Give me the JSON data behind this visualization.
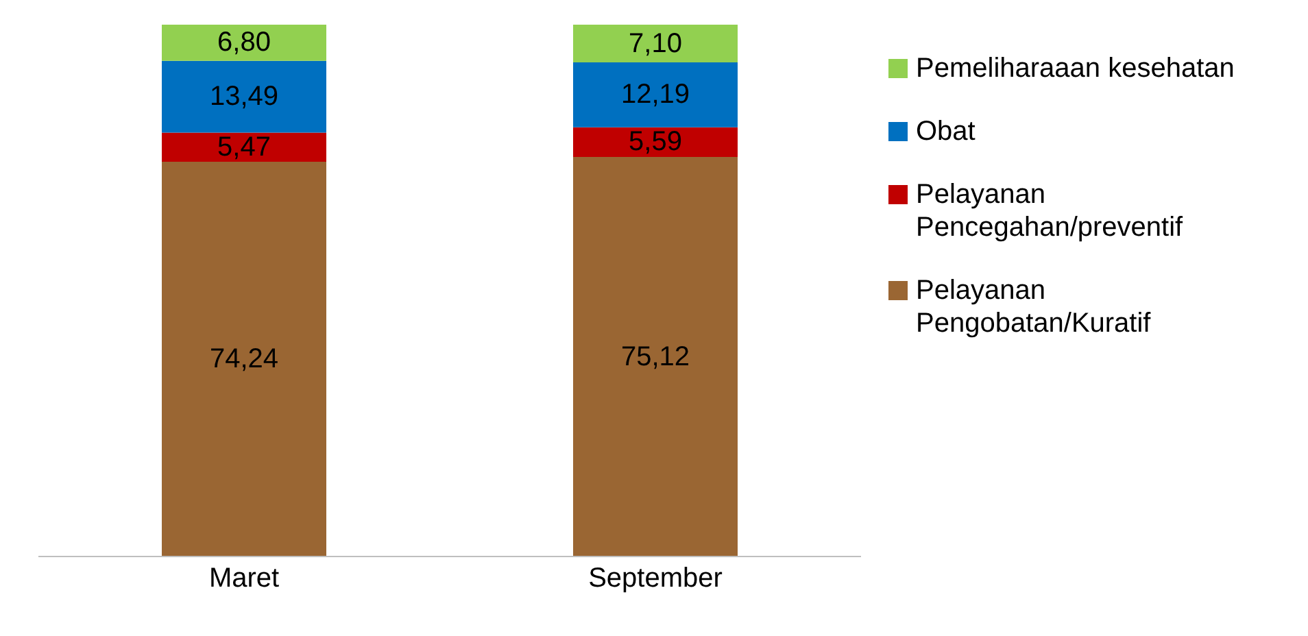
{
  "chart_data": {
    "type": "bar",
    "stacked": true,
    "categories": [
      "Maret",
      "September"
    ],
    "series": [
      {
        "name": "Pelayanan Pengobatan/Kuratif",
        "color": "#9a6633",
        "values": [
          74.24,
          75.12
        ],
        "value_labels": [
          "74,24",
          "75,12"
        ]
      },
      {
        "name": "Pelayanan Pencegahan/preventif",
        "color": "#c00000",
        "values": [
          5.47,
          5.59
        ],
        "value_labels": [
          "5,47",
          "5,59"
        ]
      },
      {
        "name": "Obat",
        "color": "#0070c0",
        "values": [
          13.49,
          12.19
        ],
        "value_labels": [
          "13,49",
          "12,19"
        ]
      },
      {
        "name": "Pemeliharaaan kesehatan",
        "color": "#92d050",
        "values": [
          6.8,
          7.1
        ],
        "value_labels": [
          "6,80",
          "7,10"
        ]
      }
    ],
    "legend": "right"
  }
}
